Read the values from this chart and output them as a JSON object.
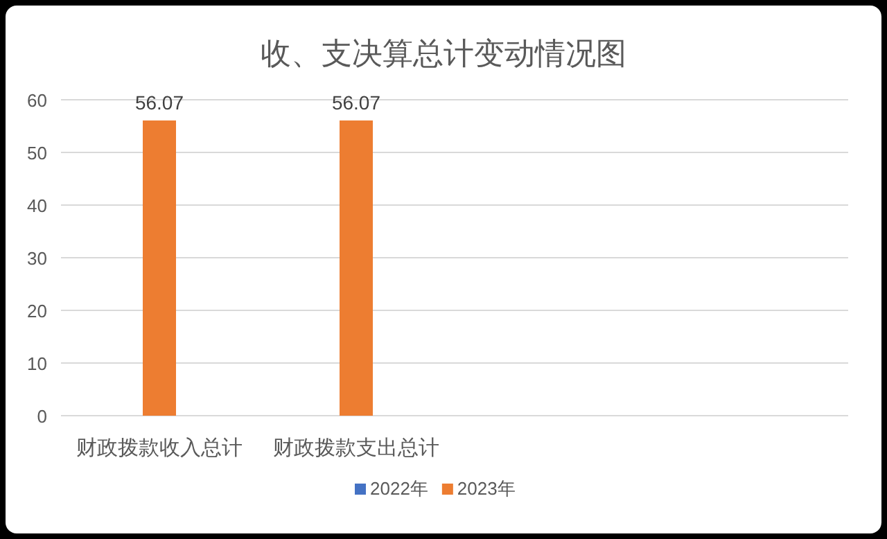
{
  "chart_data": {
    "type": "bar",
    "title": "收、支决算总计变动情况图",
    "categories": [
      "财政拨款收入总计",
      "财政拨款支出总计",
      null,
      null
    ],
    "series": [
      {
        "name": "2022年",
        "color": "#4472c4",
        "values": [
          null,
          null,
          null,
          null
        ]
      },
      {
        "name": "2023年",
        "color": "#ed7d31",
        "values": [
          56.07,
          56.07,
          null,
          null
        ]
      }
    ],
    "ylim": [
      0,
      60
    ],
    "yticks": [
      0,
      10,
      20,
      30,
      40,
      50,
      60
    ],
    "grid": "y",
    "legend": "bottom",
    "data_labels": true
  }
}
